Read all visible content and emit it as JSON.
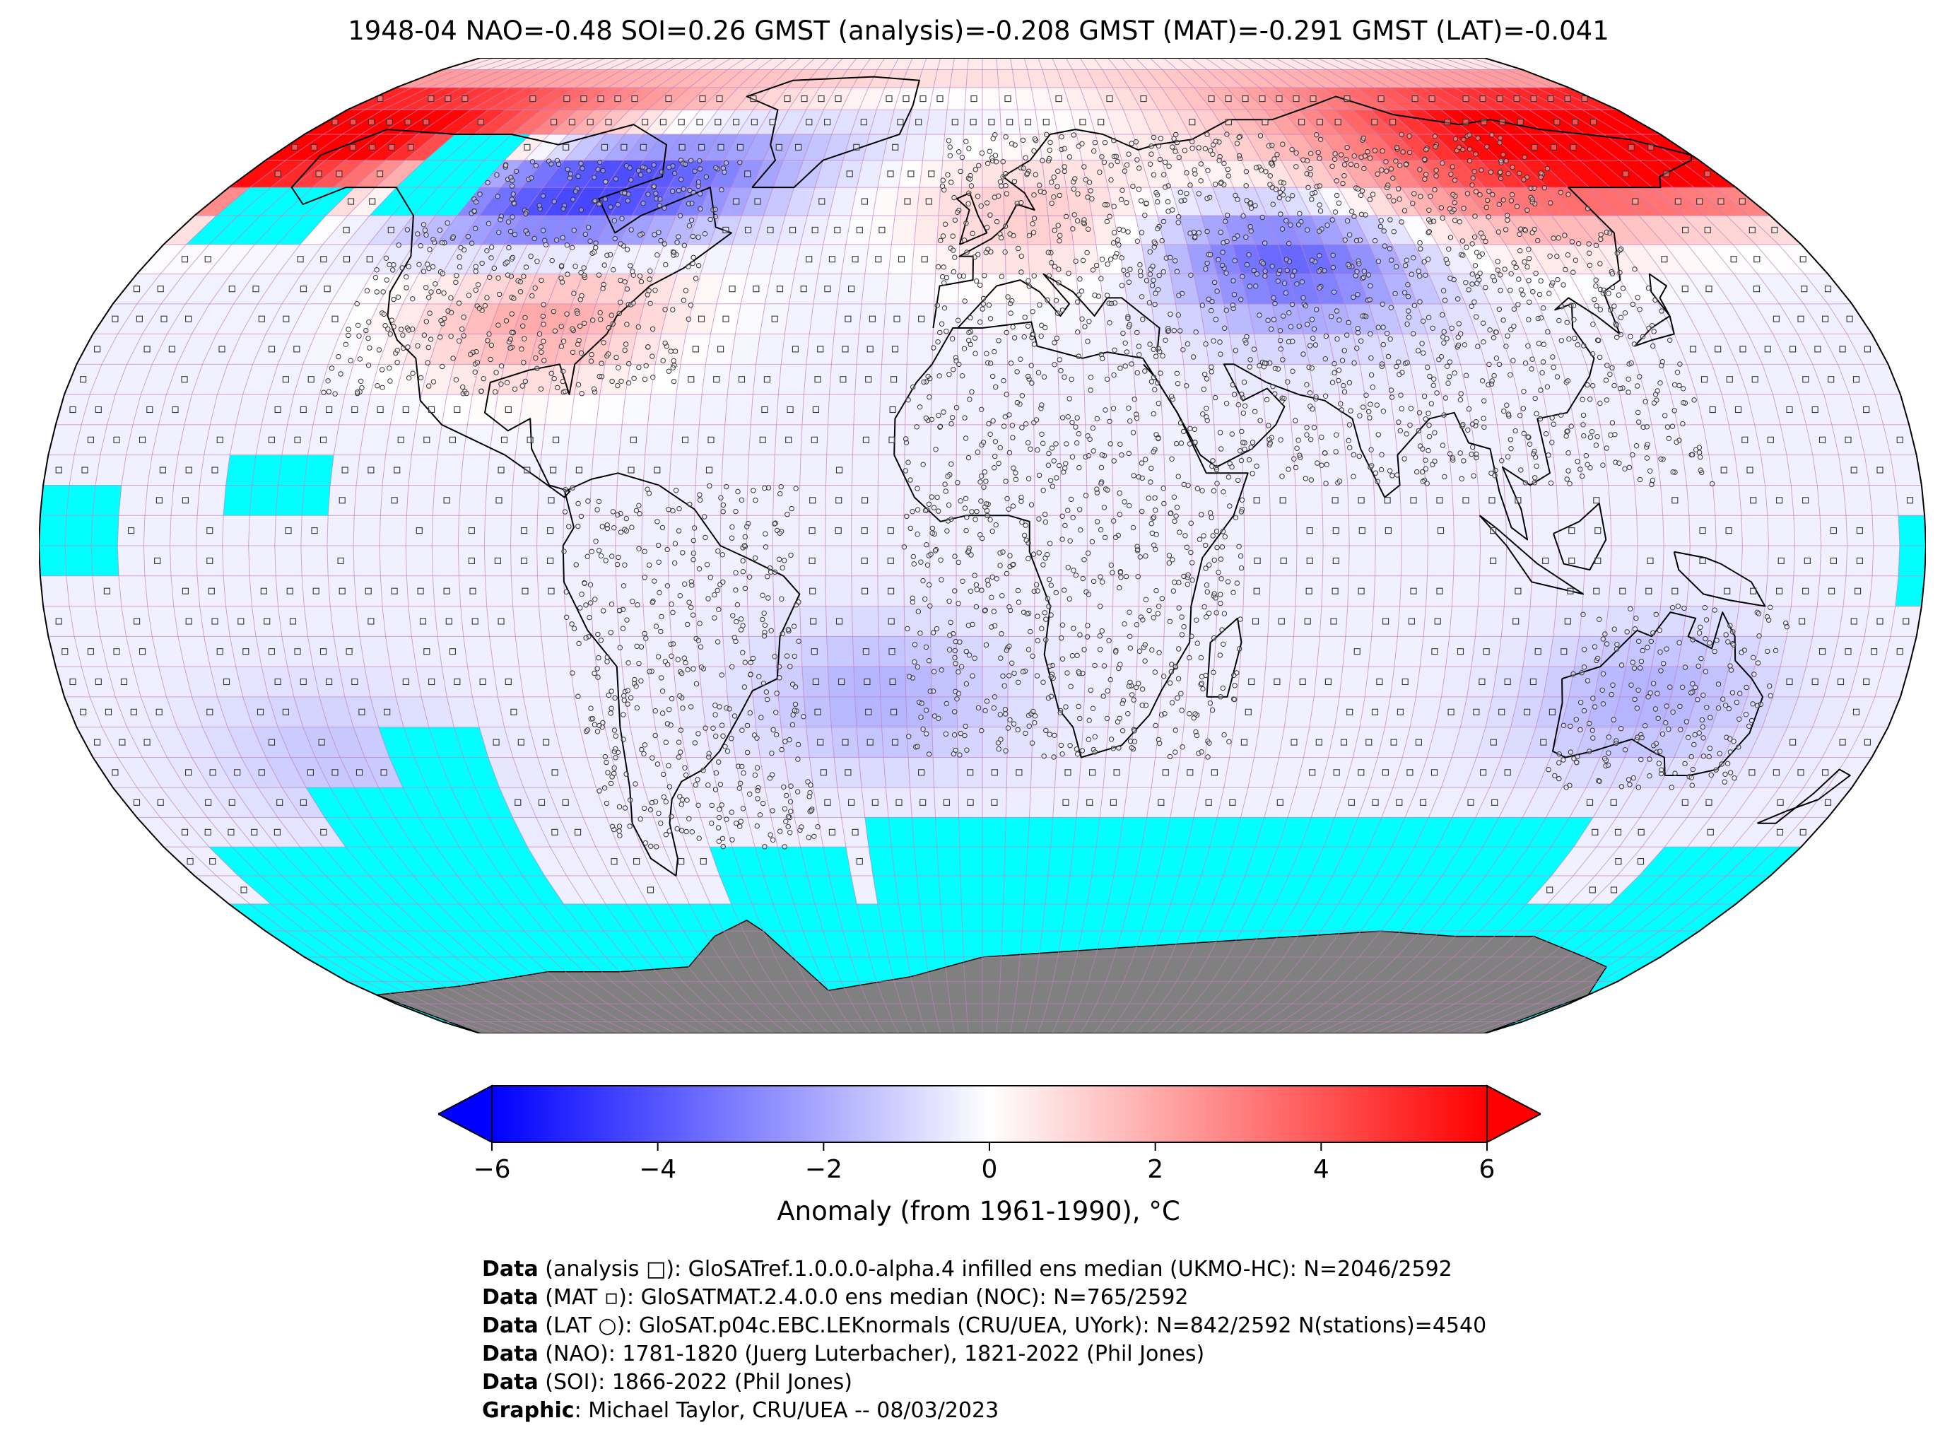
{
  "title": "1948-04 NAO=-0.48 SOI=0.26 GMST (analysis)=-0.208 GMST (MAT)=-0.291 GMST (LAT)=-0.041",
  "map": {
    "projection": "robinson",
    "colors": {
      "land_antarctica": "#808080",
      "no_data": "#00ffff",
      "coastline": "#000000",
      "gridlines": "#c080c0",
      "cold": "#0000ff",
      "neutral": "#ffffff",
      "warm": "#ff0000"
    },
    "anomaly_features": [
      {
        "name": "north-america-cold",
        "lon": -95,
        "lat": 60,
        "value": -4.5
      },
      {
        "name": "alaska-warm",
        "lon": -160,
        "lat": 70,
        "value": 5
      },
      {
        "name": "usa-warm",
        "lon": -90,
        "lat": 38,
        "value": 2.5
      },
      {
        "name": "europe-warm",
        "lon": 20,
        "lat": 55,
        "value": 2
      },
      {
        "name": "central-asia-cold",
        "lon": 65,
        "lat": 48,
        "value": -3.5
      },
      {
        "name": "siberia-warm",
        "lon": 115,
        "lat": 60,
        "value": 3
      },
      {
        "name": "east-siberia-warm",
        "lon": 160,
        "lat": 68,
        "value": 4.5
      },
      {
        "name": "south-atlantic-cool",
        "lon": -20,
        "lat": -25,
        "value": -1.5
      },
      {
        "name": "australia-cool",
        "lon": 130,
        "lat": -25,
        "value": -1.5
      },
      {
        "name": "south-pacific-cool",
        "lon": -130,
        "lat": -35,
        "value": -1
      }
    ]
  },
  "colorbar": {
    "min": -6,
    "max": 6,
    "ticks": [
      "−6",
      "−4",
      "−2",
      "0",
      "2",
      "4",
      "6"
    ],
    "label": "Anomaly (from 1961-1990), °C"
  },
  "credits": [
    {
      "bold": "Data",
      "text": " (analysis □): GloSATref.1.0.0.0-alpha.4 infilled ens median (UKMO-HC): N=2046/2592"
    },
    {
      "bold": "Data",
      "text": " (MAT ▫): GloSATMAT.2.4.0.0 ens median (NOC): N=765/2592"
    },
    {
      "bold": "Data",
      "text": " (LAT ○): GloSAT.p04c.EBC.LEKnormals (CRU/UEA, UYork): N=842/2592 N(stations)=4540"
    },
    {
      "bold": "Data",
      "text": " (NAO): 1781-1820 (Juerg Luterbacher), 1821-2022 (Phil Jones)"
    },
    {
      "bold": "Data",
      "text": " (SOI): 1866-2022 (Phil Jones)"
    },
    {
      "bold": "Graphic",
      "text": ": Michael Taylor, CRU/UEA -- 08/03/2023"
    }
  ]
}
